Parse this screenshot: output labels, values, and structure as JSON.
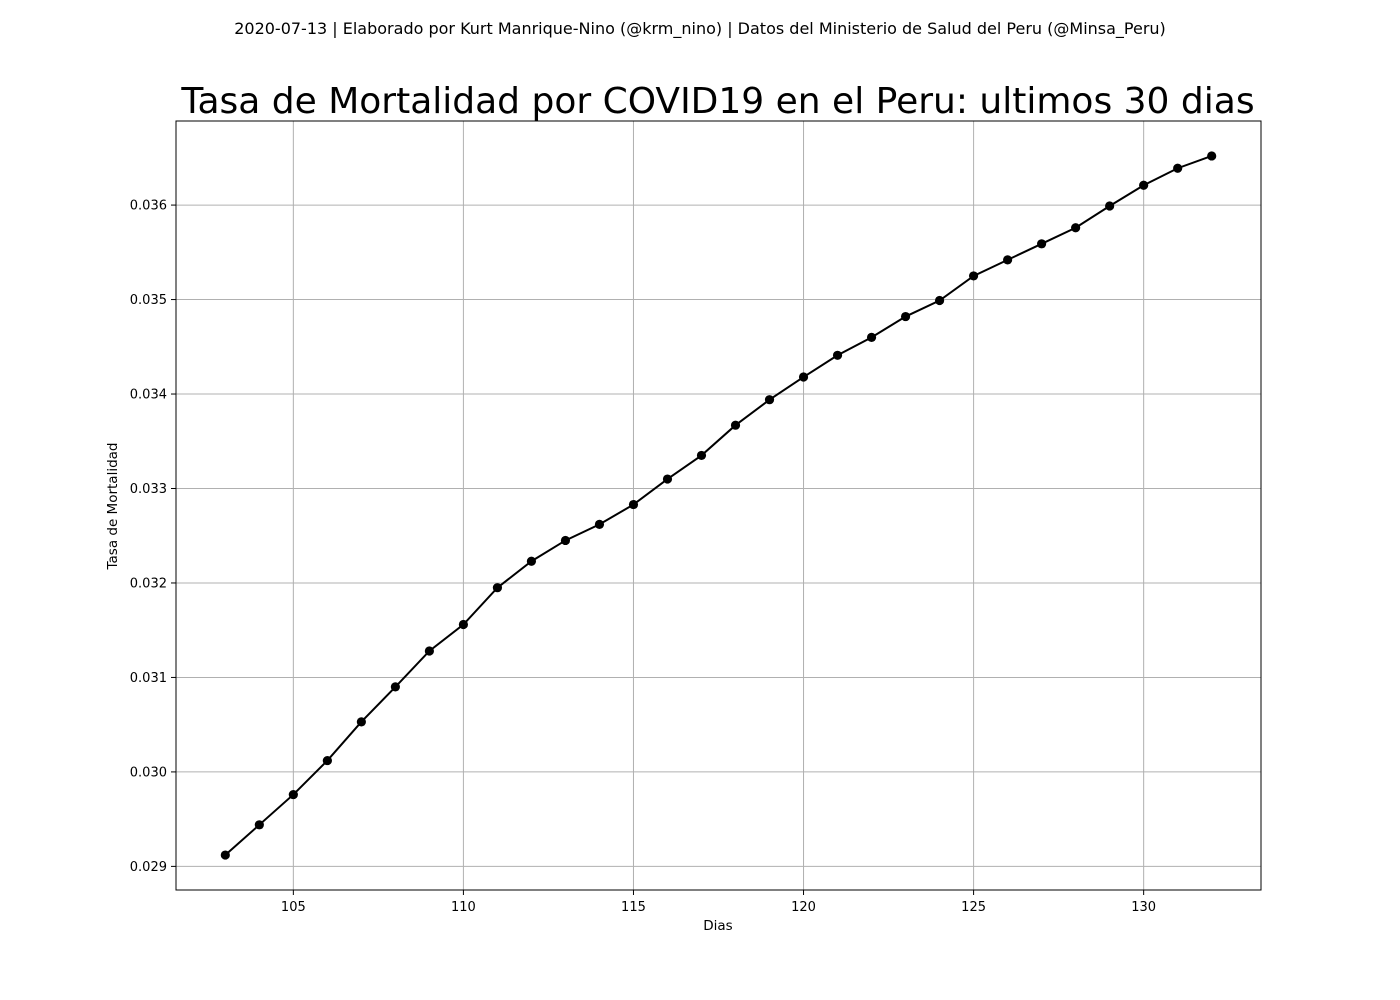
{
  "chart_data": {
    "type": "line",
    "suptitle": "2020-07-13 | Elaborado por Kurt Manrique-Nino (@krm_nino) | Datos del Ministerio de Salud del Peru (@Minsa_Peru)",
    "title": "Tasa de Mortalidad por COVID19 en el Peru: ultimos 30 dias",
    "xlabel": "Dias",
    "ylabel": "Tasa de Mortalidad",
    "xlim": [
      101.55,
      133.45
    ],
    "ylim": [
      0.02875,
      0.03689
    ],
    "xticks": [
      105,
      110,
      115,
      120,
      125,
      130
    ],
    "yticks": [
      0.029,
      0.03,
      0.031,
      0.032,
      0.033,
      0.034,
      0.035,
      0.036
    ],
    "ytick_labels": [
      "0.029",
      "0.030",
      "0.031",
      "0.032",
      "0.033",
      "0.034",
      "0.035",
      "0.036"
    ],
    "grid": true,
    "line_color": "#000000",
    "marker": "circle",
    "series": [
      {
        "x": [
          103,
          104,
          105,
          106,
          107,
          108,
          109,
          110,
          111,
          112,
          113,
          114,
          115,
          116,
          117,
          118,
          119,
          120,
          121,
          122,
          123,
          124,
          125,
          126,
          127,
          128,
          129,
          130,
          131,
          132
        ],
        "values": [
          0.02912,
          0.02944,
          0.02976,
          0.03012,
          0.03053,
          0.0309,
          0.03128,
          0.03156,
          0.03195,
          0.03223,
          0.03245,
          0.03262,
          0.03283,
          0.0331,
          0.03335,
          0.03367,
          0.03394,
          0.03418,
          0.03441,
          0.0346,
          0.03482,
          0.03499,
          0.03525,
          0.03542,
          0.03559,
          0.03576,
          0.03599,
          0.03621,
          0.03639,
          0.03652
        ]
      }
    ]
  }
}
